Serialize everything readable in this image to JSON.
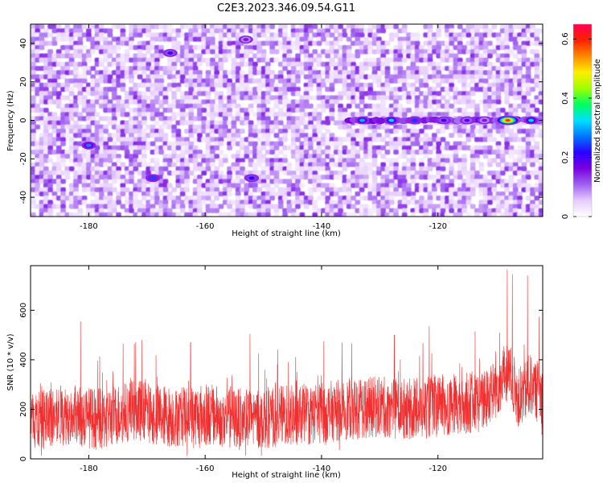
{
  "title": "C2E3.2023.346.09.54.G11",
  "chart_data": [
    {
      "type": "heatmap",
      "xlabel": "Height of straight line (km)",
      "ylabel": "Frequency (Hz)",
      "xlim": [
        -190,
        -102
      ],
      "ylim": [
        -50,
        50
      ],
      "xticks": [
        -180,
        -160,
        -140,
        -120
      ],
      "yticks": [
        -40,
        -20,
        0,
        20,
        40
      ],
      "colorbar": {
        "label": "Normalized spectral amplitude",
        "range": [
          0,
          0.65
        ],
        "ticks": [
          0,
          0.2,
          0.4,
          0.6
        ],
        "colors": [
          "#ffffff",
          "#e6ccff",
          "#a060f0",
          "#7a00e0",
          "#2a00ff",
          "#0077ff",
          "#00e0ff",
          "#00ff60",
          "#a0ff00",
          "#ffee00",
          "#ff8800",
          "#ff2000",
          "#ff0050"
        ]
      },
      "features": [
        {
          "name": "line",
          "frequency": 0,
          "x_start": -135,
          "x_end": -102
        },
        {
          "name": "peak",
          "x": -108,
          "y": 0,
          "value": 0.6
        }
      ],
      "blobs": [
        {
          "x": -180,
          "y": -13,
          "value": 0.28
        },
        {
          "x": -169,
          "y": -30,
          "value": 0.25
        },
        {
          "x": -166,
          "y": 35,
          "value": 0.2
        },
        {
          "x": -152,
          "y": -30,
          "value": 0.22
        },
        {
          "x": -153,
          "y": 42,
          "value": 0.15
        },
        {
          "x": -133,
          "y": 0,
          "value": 0.3
        },
        {
          "x": -128,
          "y": 0,
          "value": 0.32
        },
        {
          "x": -124,
          "y": 0,
          "value": 0.24
        },
        {
          "x": -119,
          "y": 0,
          "value": 0.2
        },
        {
          "x": -115,
          "y": 0,
          "value": 0.18
        },
        {
          "x": -112,
          "y": 0,
          "value": 0.15
        },
        {
          "x": -104,
          "y": 0,
          "value": 0.32
        }
      ]
    },
    {
      "type": "line",
      "xlabel": "Height of straight line (km)",
      "ylabel": "SNR (10 * v/v)",
      "xlim": [
        -190,
        -102
      ],
      "ylim": [
        0,
        780
      ],
      "xticks": [
        -180,
        -160,
        -140,
        -120
      ],
      "yticks": [
        0,
        200,
        400,
        600
      ],
      "color": "#f03030",
      "series": [
        {
          "values": [
            {
              "x": -190,
              "y": 150
            },
            {
              "x": -184,
              "y": 180
            },
            {
              "x": -178,
              "y": 160
            },
            {
              "x": -172,
              "y": 200
            },
            {
              "x": -166,
              "y": 170
            },
            {
              "x": -160,
              "y": 180
            },
            {
              "x": -154,
              "y": 160
            },
            {
              "x": -148,
              "y": 170
            },
            {
              "x": -142,
              "y": 180
            },
            {
              "x": -136,
              "y": 200
            },
            {
              "x": -130,
              "y": 210
            },
            {
              "x": -124,
              "y": 200
            },
            {
              "x": -118,
              "y": 220
            },
            {
              "x": -112,
              "y": 230
            },
            {
              "x": -108,
              "y": 350
            },
            {
              "x": -106,
              "y": 240
            },
            {
              "x": -104,
              "y": 300
            },
            {
              "x": -102,
              "y": 250
            }
          ],
          "peaks": [
            {
              "x": -181.4,
              "y": 555
            },
            {
              "x": -174.1,
              "y": 465
            },
            {
              "x": -162.5,
              "y": 470
            },
            {
              "x": -152.3,
              "y": 505
            },
            {
              "x": -139.6,
              "y": 475
            },
            {
              "x": -127.5,
              "y": 500
            },
            {
              "x": -121.5,
              "y": 535
            },
            {
              "x": -113.6,
              "y": 515
            },
            {
              "x": -109.4,
              "y": 510
            },
            {
              "x": -108.1,
              "y": 765
            },
            {
              "x": -107.2,
              "y": 745
            },
            {
              "x": -104.6,
              "y": 740
            },
            {
              "x": -102.6,
              "y": 575
            }
          ]
        }
      ]
    }
  ]
}
